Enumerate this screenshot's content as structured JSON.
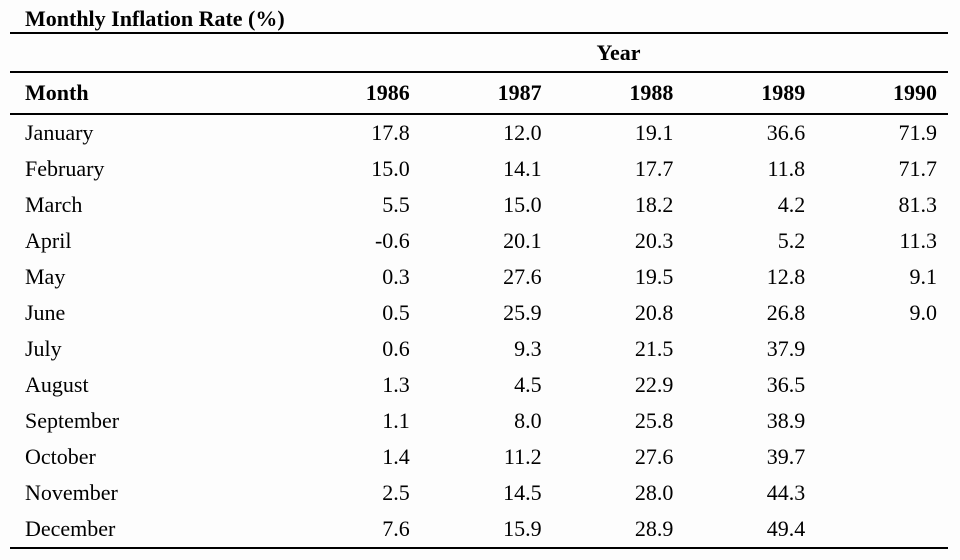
{
  "title": "Monthly Inflation Rate (%)",
  "table": {
    "group_header": "Year",
    "month_header": "Month",
    "year_headers": [
      "1986",
      "1987",
      "1988",
      "1989",
      "1990"
    ],
    "rows": [
      {
        "month": "January",
        "values": [
          "17.8",
          "12.0",
          "19.1",
          "36.6",
          "71.9"
        ]
      },
      {
        "month": "February",
        "values": [
          "15.0",
          "14.1",
          "17.7",
          "11.8",
          "71.7"
        ]
      },
      {
        "month": "March",
        "values": [
          "5.5",
          "15.0",
          "18.2",
          "4.2",
          "81.3"
        ]
      },
      {
        "month": "April",
        "values": [
          "-0.6",
          "20.1",
          "20.3",
          "5.2",
          "11.3"
        ]
      },
      {
        "month": "May",
        "values": [
          "0.3",
          "27.6",
          "19.5",
          "12.8",
          "9.1"
        ]
      },
      {
        "month": "June",
        "values": [
          "0.5",
          "25.9",
          "20.8",
          "26.8",
          "9.0"
        ]
      },
      {
        "month": "July",
        "values": [
          "0.6",
          "9.3",
          "21.5",
          "37.9",
          ""
        ]
      },
      {
        "month": "August",
        "values": [
          "1.3",
          "4.5",
          "22.9",
          "36.5",
          ""
        ]
      },
      {
        "month": "September",
        "values": [
          "1.1",
          "8.0",
          "25.8",
          "38.9",
          ""
        ]
      },
      {
        "month": "October",
        "values": [
          "1.4",
          "11.2",
          "27.6",
          "39.7",
          ""
        ]
      },
      {
        "month": "November",
        "values": [
          "2.5",
          "14.5",
          "28.0",
          "44.3",
          ""
        ]
      },
      {
        "month": "December",
        "values": [
          "7.6",
          "15.9",
          "28.9",
          "49.4",
          ""
        ]
      }
    ]
  },
  "colors": {
    "text": "#000000",
    "background": "#fdfdfd",
    "rule": "#000000"
  },
  "chart_data": {
    "type": "table",
    "title": "Monthly Inflation Rate (%)",
    "column_group_label": "Year",
    "row_label_header": "Month",
    "columns": [
      "1986",
      "1987",
      "1988",
      "1989",
      "1990"
    ],
    "rows": [
      "January",
      "February",
      "March",
      "April",
      "May",
      "June",
      "July",
      "August",
      "September",
      "October",
      "November",
      "December"
    ],
    "series": [
      {
        "name": "1986",
        "values": [
          17.8,
          15.0,
          5.5,
          -0.6,
          0.3,
          0.5,
          0.6,
          1.3,
          1.1,
          1.4,
          2.5,
          7.6
        ]
      },
      {
        "name": "1987",
        "values": [
          12.0,
          14.1,
          15.0,
          20.1,
          27.6,
          25.9,
          9.3,
          4.5,
          8.0,
          11.2,
          14.5,
          15.9
        ]
      },
      {
        "name": "1988",
        "values": [
          19.1,
          17.7,
          18.2,
          20.3,
          19.5,
          20.8,
          21.5,
          22.9,
          25.8,
          27.6,
          28.0,
          28.9
        ]
      },
      {
        "name": "1989",
        "values": [
          36.6,
          11.8,
          4.2,
          5.2,
          12.8,
          26.8,
          37.9,
          36.5,
          38.9,
          39.7,
          44.3,
          49.4
        ]
      },
      {
        "name": "1990",
        "values": [
          71.9,
          71.7,
          81.3,
          11.3,
          9.1,
          9.0,
          null,
          null,
          null,
          null,
          null,
          null
        ]
      }
    ]
  }
}
